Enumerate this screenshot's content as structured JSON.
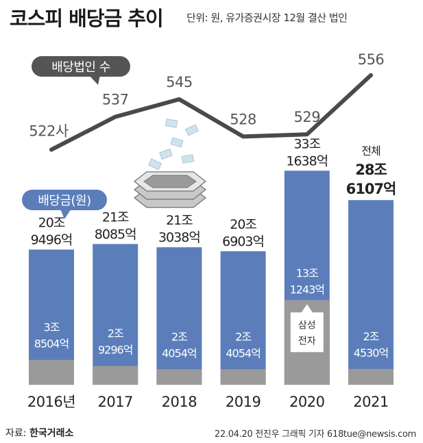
{
  "header": {
    "title": "코스피 배당금 추이",
    "unit_note": "단위: 원, 유가증권시장 12월 결산 법인"
  },
  "footer": {
    "source_label": "자료:",
    "source_name": "한국거래소",
    "credit": "22.04.20 전진우 그래픽 기자 618tue@newsis.com"
  },
  "colors": {
    "bar_total": "#5b7ebb",
    "bar_samsung": "#9a9a9a",
    "line": "#4a4a4a",
    "legend_line_bg": "#555555",
    "legend_bar_bg": "#5b7ebb"
  },
  "chart_data": {
    "type": "bar",
    "title": "코스피 배당금 추이",
    "categories": [
      "2016년",
      "2017",
      "2018",
      "2019",
      "2020",
      "2021"
    ],
    "series": [
      {
        "name": "배당금(원)",
        "values": [
          209496,
          218085,
          213038,
          206903,
          331638,
          286107
        ],
        "unit": "억원",
        "labels": [
          [
            "20조",
            "9496억"
          ],
          [
            "21조",
            "8085억"
          ],
          [
            "21조",
            "3038억"
          ],
          [
            "20조",
            "6903억"
          ],
          [
            "33조",
            "1638억"
          ],
          [
            "28조",
            "6107억"
          ]
        ]
      },
      {
        "name": "삼성전자",
        "values": [
          38504,
          29296,
          24054,
          24054,
          131243,
          24530
        ],
        "unit": "억원",
        "labels": [
          [
            "3조",
            "8504억"
          ],
          [
            "2조",
            "9296억"
          ],
          [
            "2조",
            "4054억"
          ],
          [
            "2조",
            "4054억"
          ],
          [
            "13조",
            "1243억"
          ],
          [
            "2조",
            "4530억"
          ]
        ],
        "callout": [
          "삼성",
          "전자"
        ]
      },
      {
        "name": "배당법인 수",
        "chart": "line",
        "values": [
          522,
          537,
          545,
          528,
          529,
          556
        ],
        "labels": [
          "522사",
          "537",
          "545",
          "528",
          "529",
          "556"
        ]
      }
    ],
    "total_label": "전체",
    "legend": [
      "배당법인 수",
      "배당금(원)"
    ],
    "ylim_bars": [
      0,
      350000
    ],
    "ylim_line": [
      500,
      560
    ],
    "grid": false
  }
}
